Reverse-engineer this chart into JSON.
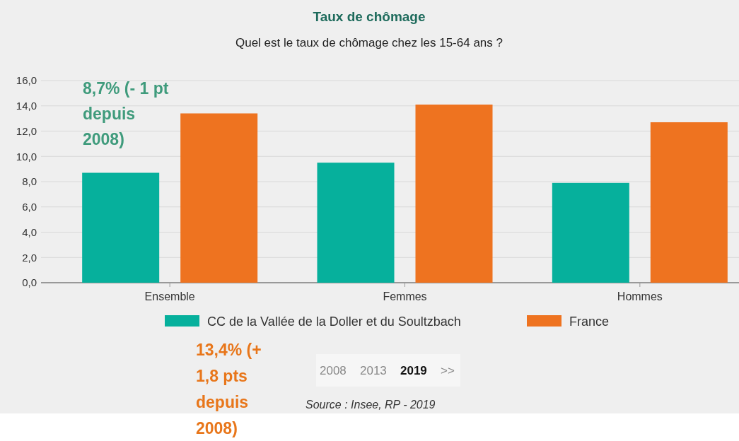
{
  "chart_data": {
    "type": "bar",
    "title": "Taux de chômage",
    "subtitle": "Quel est le taux de chômage chez les 15-64 ans ?",
    "categories": [
      "Ensemble",
      "Femmes",
      "Hommes"
    ],
    "series": [
      {
        "name": "CC de la Vallée de la Doller et du Soultzbach",
        "color": "#06b09c",
        "values": [
          8.7,
          9.5,
          7.9
        ]
      },
      {
        "name": "France",
        "color": "#ee7320",
        "values": [
          13.4,
          14.1,
          12.7
        ]
      }
    ],
    "ylim": [
      0,
      16
    ],
    "yticks": [
      {
        "value": 0,
        "label": "0,0"
      },
      {
        "value": 2,
        "label": "2,0"
      },
      {
        "value": 4,
        "label": "4,0"
      },
      {
        "value": 6,
        "label": "6,0"
      },
      {
        "value": 8,
        "label": "8,0"
      },
      {
        "value": 10,
        "label": "10,0"
      },
      {
        "value": 12,
        "label": "12,0"
      },
      {
        "value": 14,
        "label": "14,0"
      },
      {
        "value": 16,
        "label": "16,0"
      }
    ],
    "grid": "y",
    "legend": "bottom",
    "annotations": [
      "8,7% (- 1 pt depuis 2008)",
      "13,4% (+ 1,8 pts depuis 2008)",
      "2008",
      "2013",
      "2019",
      ">>",
      "Source : Insee, RP - 2019"
    ]
  }
}
